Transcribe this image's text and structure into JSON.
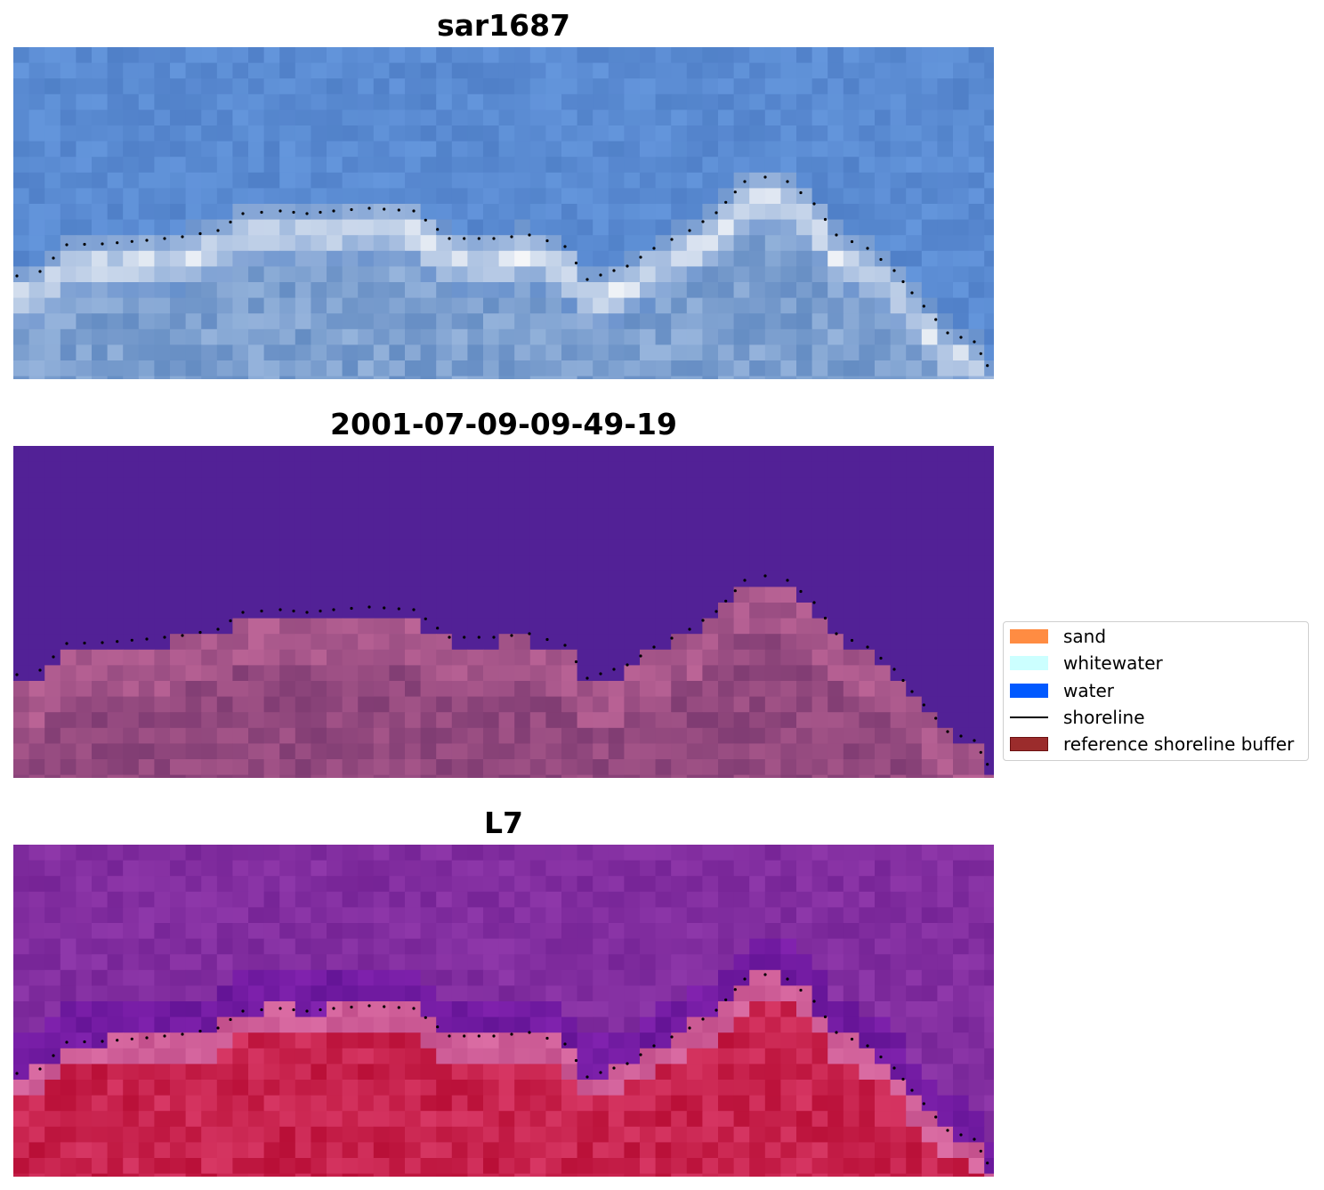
{
  "panels": [
    {
      "title": "sar1687",
      "style": "rgb"
    },
    {
      "title": "2001-07-09-09-49-19",
      "style": "classified"
    },
    {
      "title": "L7",
      "style": "false-color"
    }
  ],
  "legend": {
    "items": [
      {
        "label": "sand",
        "color": "#ff8c42",
        "kind": "patch"
      },
      {
        "label": "whitewater",
        "color": "#ccffff",
        "kind": "patch"
      },
      {
        "label": "water",
        "color": "#0059ff",
        "kind": "patch"
      },
      {
        "label": "shoreline",
        "color": "#000000",
        "kind": "line"
      },
      {
        "label": "reference shoreline buffer",
        "color": "#9b2c2c",
        "kind": "patch"
      }
    ]
  }
}
